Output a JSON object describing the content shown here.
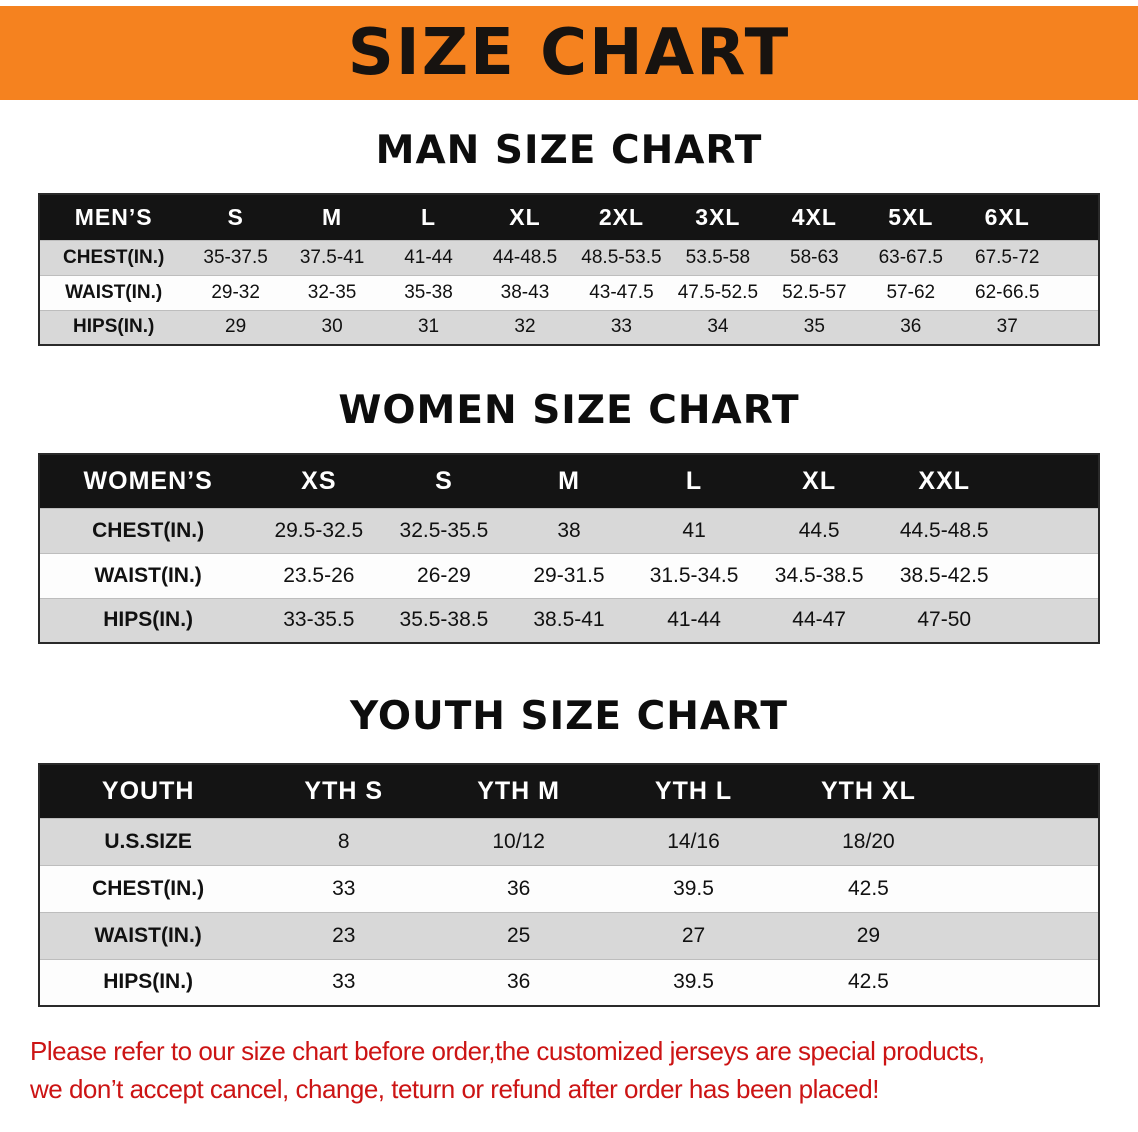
{
  "banner": {
    "title": "SIZE CHART"
  },
  "sections": [
    {
      "id": "men",
      "heading": "MAN SIZE CHART",
      "table": {
        "header": [
          "MEN’S",
          "S",
          "M",
          "L",
          "XL",
          "2XL",
          "3XL",
          "4XL",
          "5XL",
          "6XL"
        ],
        "rows": [
          [
            "CHEST(IN.)",
            "35-37.5",
            "37.5-41",
            "41-44",
            "44-48.5",
            "48.5-53.5",
            "53.5-58",
            "58-63",
            "63-67.5",
            "67.5-72"
          ],
          [
            "WAIST(IN.)",
            "29-32",
            "32-35",
            "35-38",
            "38-43",
            "43-47.5",
            "47.5-52.5",
            "52.5-57",
            "57-62",
            "62-66.5"
          ],
          [
            "HIPS(IN.)",
            "29",
            "30",
            "31",
            "32",
            "33",
            "34",
            "35",
            "36",
            "37"
          ]
        ]
      }
    },
    {
      "id": "women",
      "heading": "WOMEN SIZE CHART",
      "table": {
        "header": [
          "WOMEN’S",
          "XS",
          "S",
          "M",
          "L",
          "XL",
          "XXL"
        ],
        "rows": [
          [
            "CHEST(IN.)",
            "29.5-32.5",
            "32.5-35.5",
            "38",
            "41",
            "44.5",
            "44.5-48.5"
          ],
          [
            "WAIST(IN.)",
            "23.5-26",
            "26-29",
            "29-31.5",
            "31.5-34.5",
            "34.5-38.5",
            "38.5-42.5"
          ],
          [
            "HIPS(IN.)",
            "33-35.5",
            "35.5-38.5",
            "38.5-41",
            "41-44",
            "44-47",
            "47-50"
          ]
        ]
      }
    },
    {
      "id": "youth",
      "heading": "YOUTH SIZE CHART",
      "table": {
        "header": [
          "YOUTH",
          "YTH S",
          "YTH M",
          "YTH L",
          "YTH XL"
        ],
        "rows": [
          [
            "U.S.SIZE",
            "8",
            "10/12",
            "14/16",
            "18/20"
          ],
          [
            "CHEST(IN.)",
            "33",
            "36",
            "39.5",
            "42.5"
          ],
          [
            "WAIST(IN.)",
            "23",
            "25",
            "27",
            "29"
          ],
          [
            "HIPS(IN.)",
            "33",
            "36",
            "39.5",
            "42.5"
          ]
        ]
      }
    }
  ],
  "note": {
    "line1": "Please refer to our size chart before order,the customized jerseys are special products,",
    "line2": "we don’t accept cancel, change, teturn or refund after order has been placed!"
  },
  "colors": {
    "banner_bg": "#F5821F",
    "banner_text": "#171310",
    "table_header_bg": "#141414",
    "table_header_text": "#ffffff",
    "row_stripe": "#d8d8d8",
    "row_white": "#fdfdfd",
    "note_red": "#cc1414",
    "text": "#111111"
  }
}
